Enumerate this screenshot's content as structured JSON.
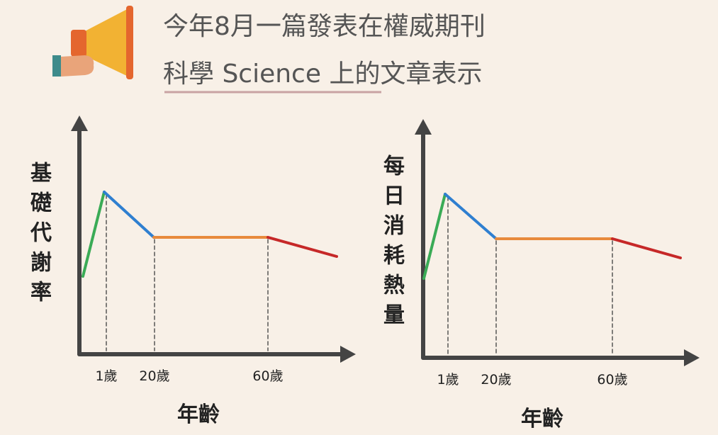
{
  "header": {
    "lines": [
      "今年8月一篇發表在權威期刊",
      "科學 Science 上的文章表示"
    ]
  },
  "charts": [
    {
      "y_label": "基礎代謝率",
      "x_label": "年齡",
      "ticks": [
        "1歲",
        "20歲",
        "60歲"
      ]
    },
    {
      "y_label": "每日消耗熱量",
      "x_label": "年齡",
      "ticks": [
        "1歲",
        "20歲",
        "60歲"
      ]
    }
  ]
}
